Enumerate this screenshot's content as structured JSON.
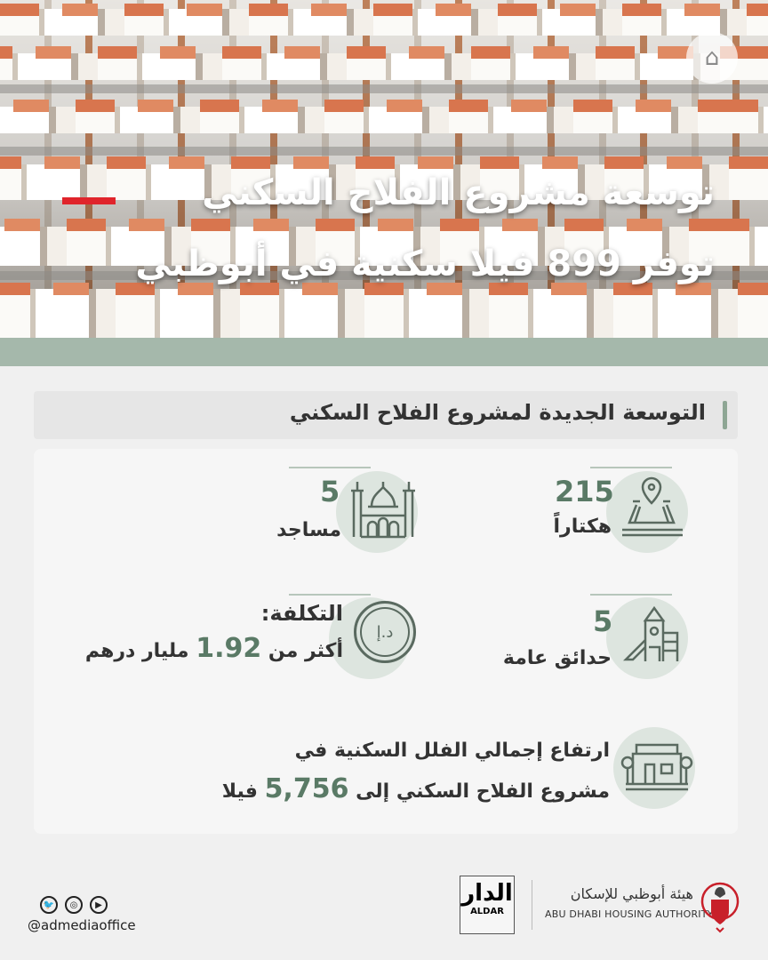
{
  "hero": {
    "title_line1": "توسعة مشروع الفلاح السكني",
    "title_line2": "توفر 899 فيلا سكنية في أبوظبي",
    "accent_color": "#e0242b"
  },
  "section": {
    "title": "التوسعة الجديدة لمشروع الفلاح السكني"
  },
  "stats": [
    {
      "icon": "map-pin-land-icon",
      "value": "215",
      "label": "هكتاراً"
    },
    {
      "icon": "mosque-icon",
      "value": "5",
      "label": "مساجد"
    },
    {
      "icon": "playground-icon",
      "value": "5",
      "label": "حدائق عامة"
    },
    {
      "icon": "dirham-coin-icon",
      "label_line1": "التكلفة:",
      "prefix": "أكثر من",
      "value": "1.92",
      "suffix": "مليار درهم",
      "coin_text": "د.إ"
    },
    {
      "icon": "villa-icon",
      "line1": "ارتفاع إجمالي الفلل السكنية في",
      "line2_prefix": "مشروع الفلاح السكني إلى",
      "value": "5,756",
      "line2_suffix": "فيلا"
    }
  ],
  "footer": {
    "handle": "@admediaoffice",
    "social": [
      "twitter-icon",
      "instagram-icon",
      "youtube-icon"
    ],
    "aldar_ar": "الدار",
    "aldar_en": "ALDAR",
    "authority_ar": "هيئة أبوظبي للإسكان",
    "authority_en": "ABU DHABI HOUSING AUTHORITY"
  },
  "colors": {
    "accent_green": "#5a7a66",
    "circle": "#dde5df",
    "band": "#a5b8ab"
  }
}
